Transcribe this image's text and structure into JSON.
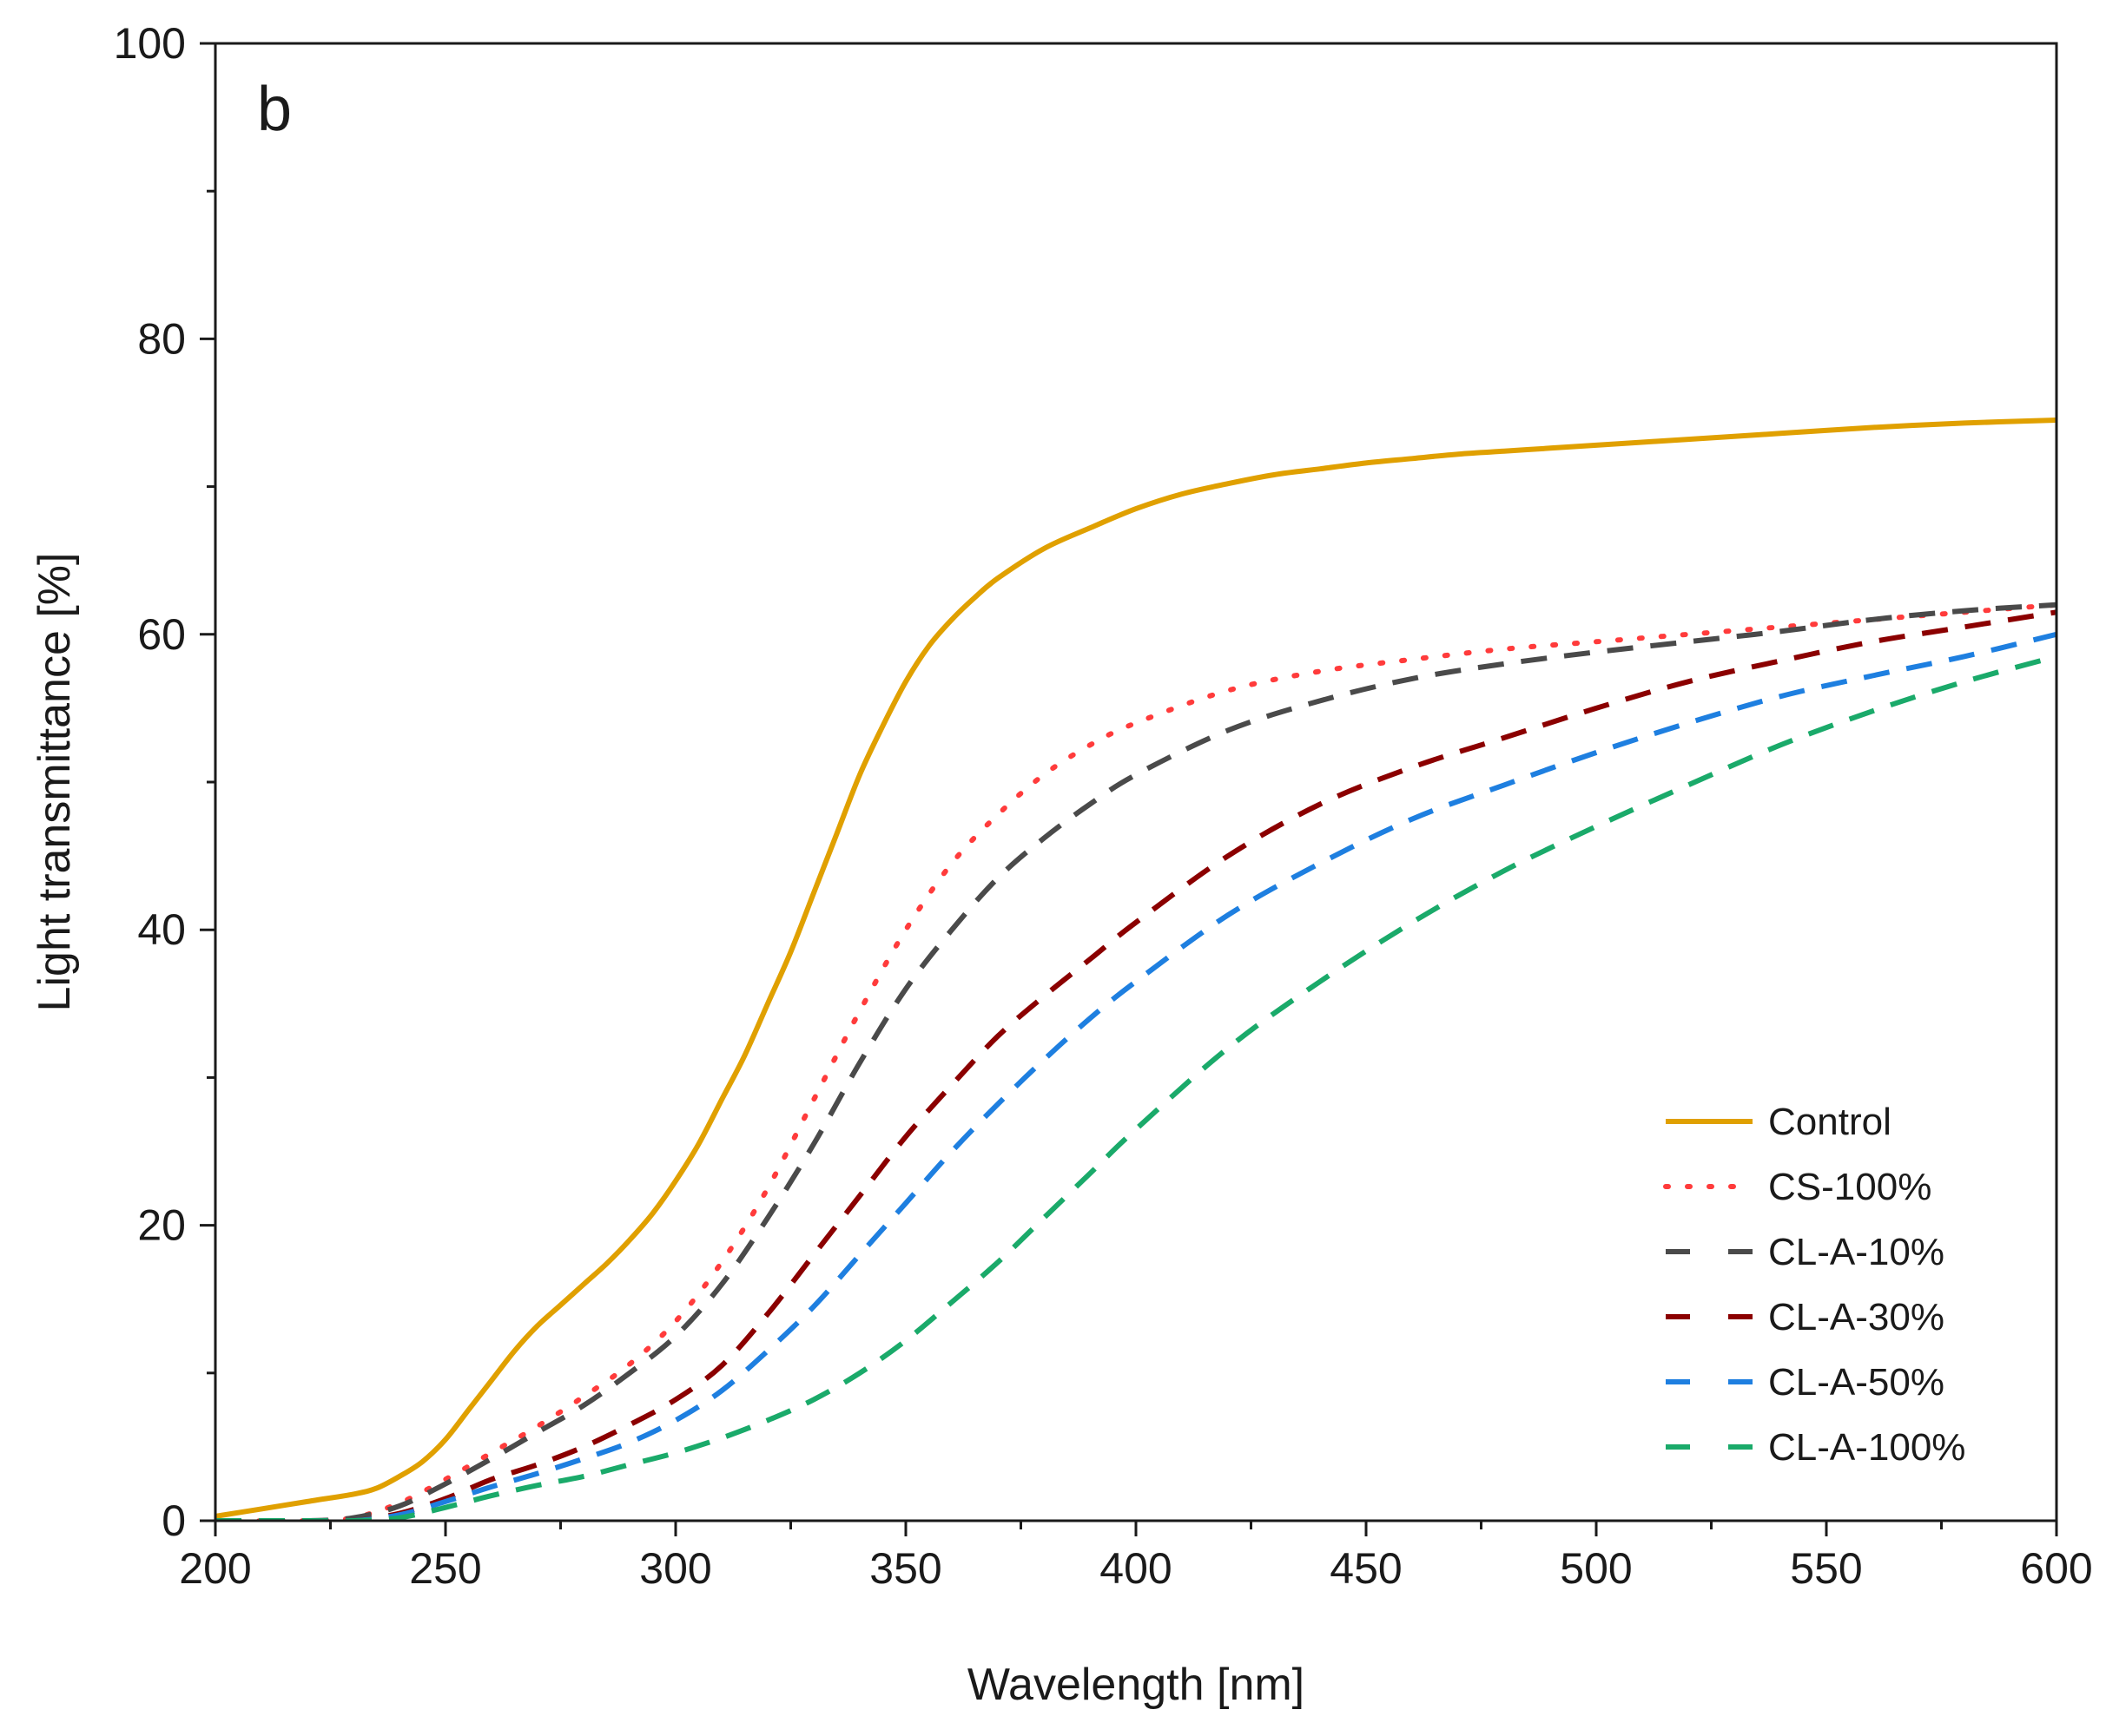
{
  "chart_data": {
    "type": "line",
    "panel_label": "b",
    "xlabel": "Wavelength [nm]",
    "ylabel": "Light transmittance [%]",
    "xlim": [
      200,
      600
    ],
    "ylim": [
      0,
      100
    ],
    "xticks": [
      200,
      250,
      300,
      350,
      400,
      450,
      500,
      550,
      600
    ],
    "yticks": [
      0,
      20,
      40,
      60,
      80,
      100
    ],
    "legend_position": "bottom-right",
    "grid": false,
    "series": [
      {
        "name": "Control",
        "color": "#e0a000",
        "style": "solid",
        "points": [
          [
            200,
            0.3
          ],
          [
            210,
            0.8
          ],
          [
            220,
            1.3
          ],
          [
            230,
            1.8
          ],
          [
            235,
            2.2
          ],
          [
            240,
            3.0
          ],
          [
            245,
            4.0
          ],
          [
            250,
            5.5
          ],
          [
            255,
            7.5
          ],
          [
            260,
            9.5
          ],
          [
            265,
            11.5
          ],
          [
            270,
            13.2
          ],
          [
            275,
            14.6
          ],
          [
            280,
            16.0
          ],
          [
            285,
            17.4
          ],
          [
            290,
            19.0
          ],
          [
            295,
            20.8
          ],
          [
            300,
            23.0
          ],
          [
            305,
            25.5
          ],
          [
            310,
            28.5
          ],
          [
            315,
            31.5
          ],
          [
            320,
            35.0
          ],
          [
            325,
            38.5
          ],
          [
            330,
            42.5
          ],
          [
            335,
            46.5
          ],
          [
            340,
            50.5
          ],
          [
            345,
            53.8
          ],
          [
            350,
            56.8
          ],
          [
            355,
            59.2
          ],
          [
            360,
            61.0
          ],
          [
            365,
            62.5
          ],
          [
            370,
            63.8
          ],
          [
            380,
            65.8
          ],
          [
            390,
            67.2
          ],
          [
            400,
            68.5
          ],
          [
            410,
            69.5
          ],
          [
            420,
            70.2
          ],
          [
            430,
            70.8
          ],
          [
            440,
            71.2
          ],
          [
            450,
            71.6
          ],
          [
            460,
            71.9
          ],
          [
            470,
            72.2
          ],
          [
            480,
            72.4
          ],
          [
            490,
            72.6
          ],
          [
            500,
            72.8
          ],
          [
            520,
            73.2
          ],
          [
            540,
            73.6
          ],
          [
            560,
            74.0
          ],
          [
            580,
            74.3
          ],
          [
            600,
            74.5
          ]
        ]
      },
      {
        "name": "CS-100%",
        "color": "#ff3b3b",
        "style": "dotted",
        "points": [
          [
            200,
            0.0
          ],
          [
            220,
            0.0
          ],
          [
            230,
            0.2
          ],
          [
            240,
            1.2
          ],
          [
            250,
            2.8
          ],
          [
            260,
            4.6
          ],
          [
            270,
            6.4
          ],
          [
            280,
            8.4
          ],
          [
            290,
            10.6
          ],
          [
            300,
            13.5
          ],
          [
            310,
            17.5
          ],
          [
            320,
            22.5
          ],
          [
            330,
            28.5
          ],
          [
            340,
            34.5
          ],
          [
            350,
            40.0
          ],
          [
            360,
            44.5
          ],
          [
            370,
            47.8
          ],
          [
            380,
            50.5
          ],
          [
            390,
            52.5
          ],
          [
            400,
            54.0
          ],
          [
            420,
            56.2
          ],
          [
            440,
            57.5
          ],
          [
            460,
            58.3
          ],
          [
            480,
            59.0
          ],
          [
            500,
            59.5
          ],
          [
            520,
            60.0
          ],
          [
            540,
            60.5
          ],
          [
            560,
            61.0
          ],
          [
            580,
            61.5
          ],
          [
            600,
            62.0
          ]
        ]
      },
      {
        "name": "CL-A-10%",
        "color": "#4a4a4a",
        "style": "dashed",
        "points": [
          [
            200,
            0.0
          ],
          [
            220,
            0.0
          ],
          [
            230,
            0.2
          ],
          [
            240,
            1.0
          ],
          [
            250,
            2.5
          ],
          [
            260,
            4.2
          ],
          [
            270,
            6.0
          ],
          [
            280,
            7.8
          ],
          [
            290,
            10.0
          ],
          [
            300,
            12.5
          ],
          [
            310,
            16.0
          ],
          [
            320,
            20.5
          ],
          [
            330,
            25.5
          ],
          [
            340,
            31.0
          ],
          [
            350,
            36.0
          ],
          [
            360,
            40.0
          ],
          [
            370,
            43.5
          ],
          [
            380,
            46.2
          ],
          [
            390,
            48.5
          ],
          [
            400,
            50.5
          ],
          [
            420,
            53.5
          ],
          [
            440,
            55.5
          ],
          [
            460,
            57.0
          ],
          [
            480,
            58.0
          ],
          [
            500,
            58.8
          ],
          [
            520,
            59.5
          ],
          [
            540,
            60.2
          ],
          [
            560,
            61.0
          ],
          [
            580,
            61.6
          ],
          [
            600,
            62.0
          ]
        ]
      },
      {
        "name": "CL-A-30%",
        "color": "#8b0000",
        "style": "dashed",
        "points": [
          [
            200,
            0.0
          ],
          [
            220,
            0.0
          ],
          [
            230,
            0.0
          ],
          [
            240,
            0.5
          ],
          [
            250,
            1.5
          ],
          [
            260,
            2.8
          ],
          [
            270,
            3.8
          ],
          [
            280,
            5.0
          ],
          [
            290,
            6.5
          ],
          [
            300,
            8.2
          ],
          [
            310,
            10.5
          ],
          [
            320,
            14.0
          ],
          [
            330,
            18.0
          ],
          [
            340,
            22.0
          ],
          [
            350,
            26.0
          ],
          [
            360,
            29.5
          ],
          [
            370,
            32.8
          ],
          [
            380,
            35.5
          ],
          [
            390,
            38.0
          ],
          [
            400,
            40.5
          ],
          [
            420,
            45.0
          ],
          [
            440,
            48.5
          ],
          [
            460,
            51.0
          ],
          [
            480,
            53.0
          ],
          [
            500,
            55.0
          ],
          [
            520,
            56.8
          ],
          [
            540,
            58.2
          ],
          [
            560,
            59.5
          ],
          [
            580,
            60.5
          ],
          [
            600,
            61.5
          ]
        ]
      },
      {
        "name": "CL-A-50%",
        "color": "#1e7fe0",
        "style": "dashed",
        "points": [
          [
            200,
            0.0
          ],
          [
            220,
            0.0
          ],
          [
            230,
            0.0
          ],
          [
            240,
            0.4
          ],
          [
            250,
            1.3
          ],
          [
            260,
            2.3
          ],
          [
            270,
            3.2
          ],
          [
            280,
            4.2
          ],
          [
            290,
            5.3
          ],
          [
            300,
            6.8
          ],
          [
            310,
            8.8
          ],
          [
            320,
            11.5
          ],
          [
            330,
            14.5
          ],
          [
            340,
            18.0
          ],
          [
            350,
            21.5
          ],
          [
            360,
            25.0
          ],
          [
            370,
            28.2
          ],
          [
            380,
            31.2
          ],
          [
            390,
            34.0
          ],
          [
            400,
            36.5
          ],
          [
            420,
            41.0
          ],
          [
            440,
            44.5
          ],
          [
            460,
            47.5
          ],
          [
            480,
            49.8
          ],
          [
            500,
            52.0
          ],
          [
            520,
            54.0
          ],
          [
            540,
            55.8
          ],
          [
            560,
            57.2
          ],
          [
            580,
            58.5
          ],
          [
            600,
            60.0
          ]
        ]
      },
      {
        "name": "CL-A-100%",
        "color": "#1aaa6a",
        "style": "dashed",
        "points": [
          [
            200,
            0.0
          ],
          [
            220,
            0.0
          ],
          [
            230,
            0.0
          ],
          [
            240,
            0.2
          ],
          [
            250,
            0.9
          ],
          [
            260,
            1.7
          ],
          [
            270,
            2.4
          ],
          [
            280,
            3.0
          ],
          [
            290,
            3.8
          ],
          [
            300,
            4.6
          ],
          [
            310,
            5.6
          ],
          [
            320,
            6.8
          ],
          [
            330,
            8.2
          ],
          [
            340,
            10.0
          ],
          [
            350,
            12.2
          ],
          [
            360,
            14.8
          ],
          [
            370,
            17.5
          ],
          [
            380,
            20.5
          ],
          [
            390,
            23.5
          ],
          [
            400,
            26.5
          ],
          [
            420,
            32.0
          ],
          [
            440,
            36.5
          ],
          [
            460,
            40.5
          ],
          [
            480,
            44.0
          ],
          [
            500,
            47.0
          ],
          [
            520,
            49.8
          ],
          [
            540,
            52.5
          ],
          [
            560,
            54.8
          ],
          [
            580,
            56.8
          ],
          [
            600,
            58.5
          ]
        ]
      }
    ]
  }
}
